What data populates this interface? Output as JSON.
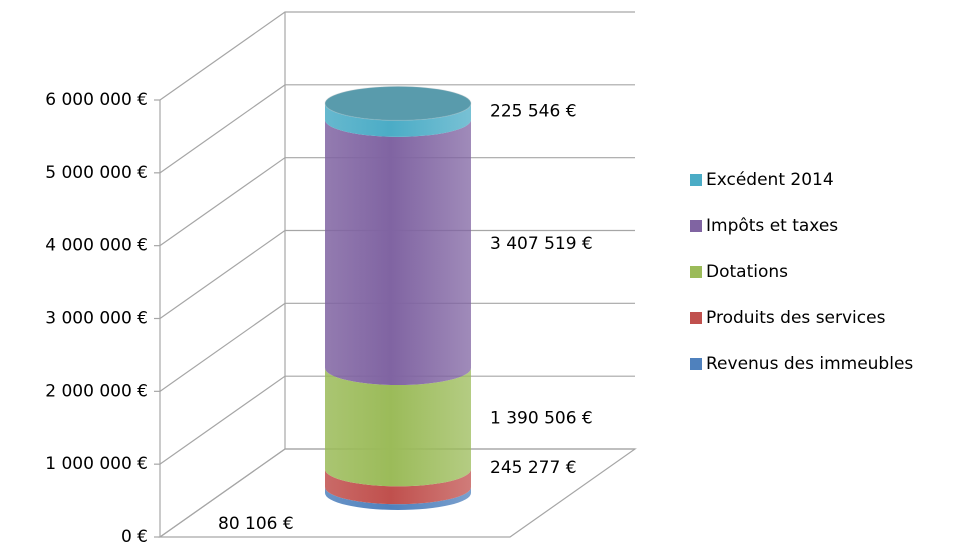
{
  "chart_data": {
    "type": "stacked-cylinder",
    "categories": [
      null
    ],
    "series": [
      {
        "name": "Revenus des immeubles",
        "color": "#4f81bd",
        "values": [
          80106
        ],
        "value_labels": [
          "80 106 €"
        ]
      },
      {
        "name": "Produits des services",
        "color": "#c0504d",
        "values": [
          245277
        ],
        "value_labels": [
          "245 277 €"
        ]
      },
      {
        "name": "Dotations",
        "color": "#9bbb59",
        "values": [
          1390506
        ],
        "value_labels": [
          "1 390 506 €"
        ]
      },
      {
        "name": "Impôts et taxes",
        "color": "#8064a2",
        "values": [
          3407519
        ],
        "value_labels": [
          "3 407 519 €"
        ]
      },
      {
        "name": "Excédent 2014",
        "color": "#4bacc6",
        "values": [
          225546
        ],
        "value_labels": [
          "225 546 €"
        ]
      }
    ],
    "ylim": [
      0,
      6000000
    ],
    "yticks": [
      {
        "value": 0,
        "label": "0 €"
      },
      {
        "value": 1000000,
        "label": "1 000 000 €"
      },
      {
        "value": 2000000,
        "label": "2 000 000 €"
      },
      {
        "value": 3000000,
        "label": "3 000 000 €"
      },
      {
        "value": 4000000,
        "label": "4 000 000 €"
      },
      {
        "value": 5000000,
        "label": "5 000 000 €"
      },
      {
        "value": 6000000,
        "label": "6 000 000 €"
      }
    ],
    "grid": true,
    "legend": "right"
  }
}
